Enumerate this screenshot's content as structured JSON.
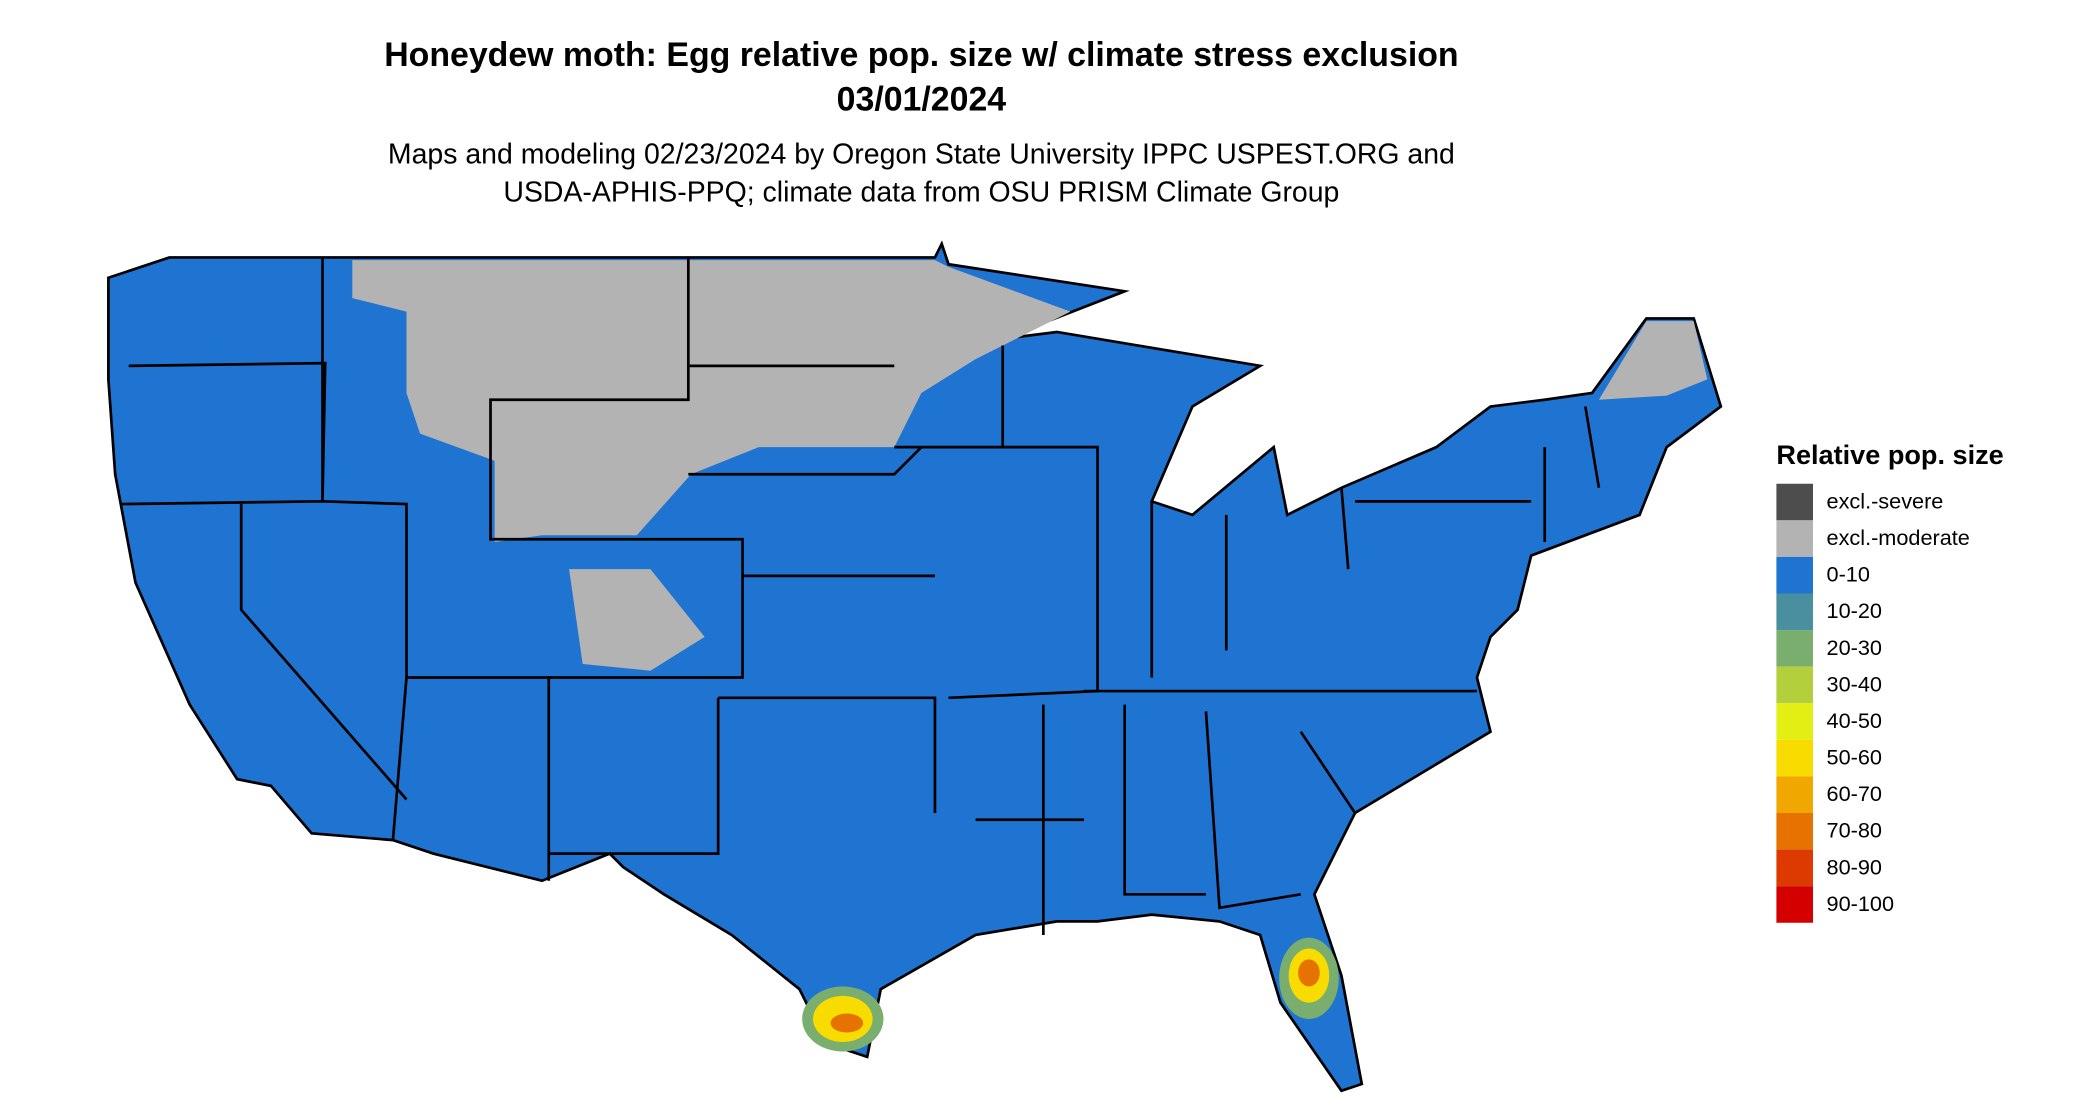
{
  "title": "Honeydew moth: Egg relative pop. size w/ climate stress exclusion",
  "date": "03/01/2024",
  "subtitle": [
    "Maps and modeling 02/23/2024 by Oregon State University IPPC USPEST.ORG and",
    "USDA-APHIS-PPQ; climate data from OSU PRISM Climate Group"
  ],
  "legend": {
    "title": "Relative pop. size",
    "items": [
      {
        "label": "excl.-severe",
        "color": "#4d4d4d"
      },
      {
        "label": "excl.-moderate",
        "color": "#b3b3b3"
      },
      {
        "label": "0-10",
        "color": "#1f74d1"
      },
      {
        "label": "10-20",
        "color": "#4a8fa0"
      },
      {
        "label": "20-30",
        "color": "#7aae6e"
      },
      {
        "label": "30-40",
        "color": "#b3cf3c"
      },
      {
        "label": "40-50",
        "color": "#e2ee14"
      },
      {
        "label": "50-60",
        "color": "#f8dc00"
      },
      {
        "label": "60-70",
        "color": "#f0a800"
      },
      {
        "label": "70-80",
        "color": "#e67300"
      },
      {
        "label": "80-90",
        "color": "#dc3a00"
      },
      {
        "label": "90-100",
        "color": "#d40000"
      }
    ]
  }
}
